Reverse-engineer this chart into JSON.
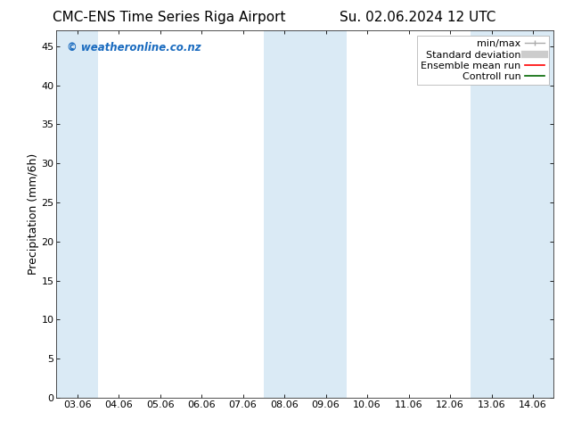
{
  "title_left": "CMC-ENS Time Series Riga Airport",
  "title_right": "Su. 02.06.2024 12 UTC",
  "ylabel": "Precipitation (mm/6h)",
  "watermark": "© weatheronline.co.nz",
  "x_tick_labels": [
    "03.06",
    "04.06",
    "05.06",
    "06.06",
    "07.06",
    "08.06",
    "09.06",
    "10.06",
    "11.06",
    "12.06",
    "13.06",
    "14.06"
  ],
  "x_tick_positions": [
    0,
    1,
    2,
    3,
    4,
    5,
    6,
    7,
    8,
    9,
    10,
    11
  ],
  "ylim": [
    0,
    47
  ],
  "yticks": [
    0,
    5,
    10,
    15,
    20,
    25,
    30,
    35,
    40,
    45
  ],
  "xlim": [
    -0.5,
    11.5
  ],
  "shaded_bands": [
    {
      "x_start": -0.5,
      "x_end": 0.5
    },
    {
      "x_start": 4.5,
      "x_end": 6.5
    },
    {
      "x_start": 9.5,
      "x_end": 11.5
    }
  ],
  "shade_color": "#daeaf5",
  "background_color": "#ffffff",
  "plot_bg_color": "#ffffff",
  "legend_labels": [
    "min/max",
    "Standard deviation",
    "Ensemble mean run",
    "Controll run"
  ],
  "legend_line_colors": [
    "#aaaaaa",
    "#cccccc",
    "#ff0000",
    "#008000"
  ],
  "watermark_color": "#1a6bbf",
  "title_fontsize": 11,
  "tick_fontsize": 8,
  "ylabel_fontsize": 9,
  "legend_fontsize": 8
}
